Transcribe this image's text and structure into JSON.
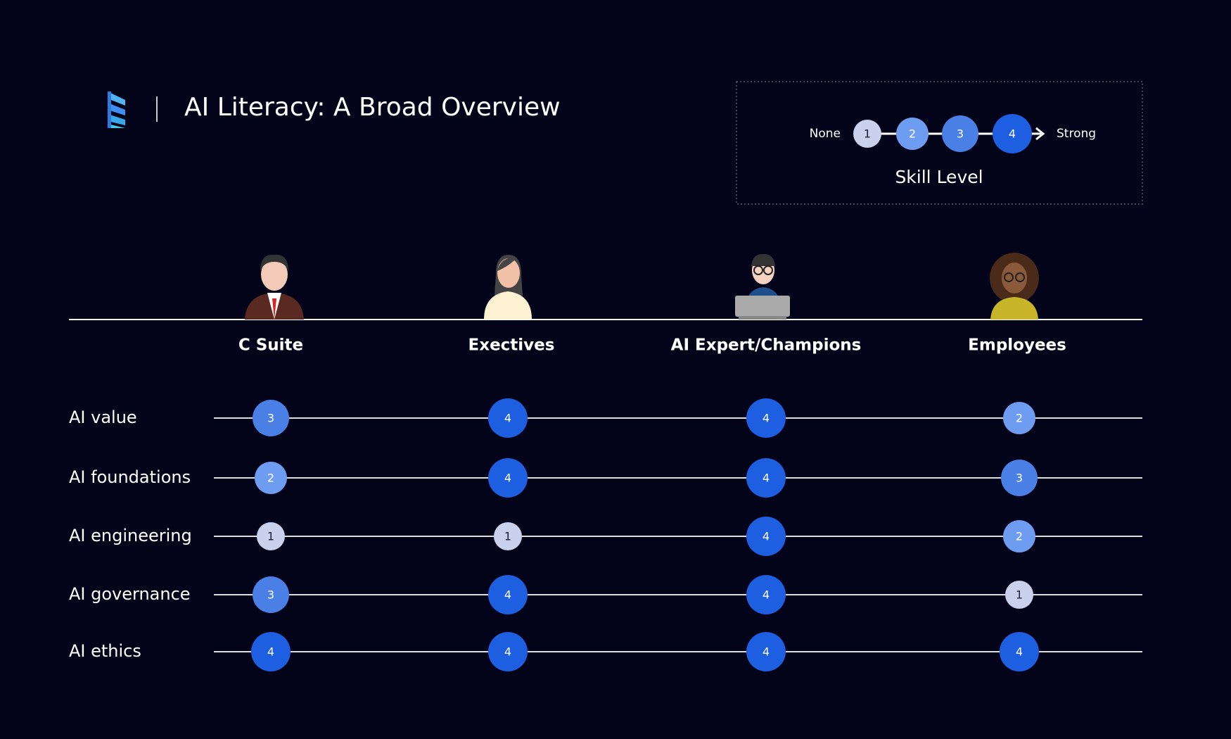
{
  "header": {
    "title": "AI Literacy: A Broad Overview"
  },
  "legend": {
    "low": "None",
    "high": "Strong",
    "levels": [
      1,
      2,
      3,
      4
    ],
    "caption": "Skill Level"
  },
  "columns": [
    "C Suite",
    "Exectives",
    "AI Expert/Champions",
    "Employees"
  ],
  "rows": [
    {
      "label": "AI value",
      "levels": [
        3,
        4,
        4,
        2
      ]
    },
    {
      "label": "AI foundations",
      "levels": [
        2,
        4,
        4,
        3
      ]
    },
    {
      "label": "AI engineering",
      "levels": [
        1,
        1,
        4,
        2
      ]
    },
    {
      "label": "AI governance",
      "levels": [
        3,
        4,
        4,
        1
      ]
    },
    {
      "label": "AI ethics",
      "levels": [
        4,
        4,
        4,
        4
      ]
    }
  ]
}
